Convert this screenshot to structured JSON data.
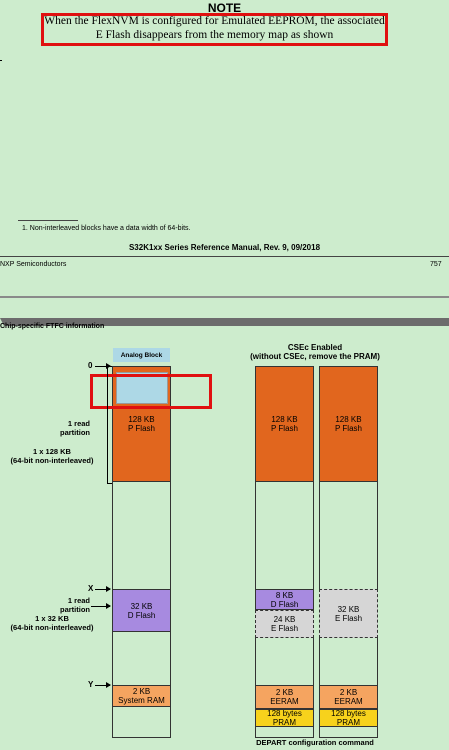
{
  "note": {
    "title": "NOTE",
    "text": "When the FlexNVM is configured for Emulated EEPROM, the associated E Flash disappears from the memory map as shown"
  },
  "footnote": "1.   Non-interleaved blocks have a data width of 64-bits.",
  "footer": {
    "manual": "S32K1xx Series Reference Manual, Rev. 9, 09/2018",
    "company": "NXP Semiconductors",
    "page_number": "757"
  },
  "section_title": "Chip-specific FTFC information",
  "diagram": {
    "analog_block": "Analog Block",
    "left_labels": {
      "zero": "0",
      "x": "X",
      "y": "Y",
      "read_partition_1": "1 read\npartition",
      "block_1x128": "1 x 128 KB\n(64-bit non-interleaved)",
      "read_partition_2": "1 read\npartition",
      "block_1x32": "1 x 32 KB\n(64-bit non-interleaved)"
    },
    "left_column": {
      "pflash": "128 KB\nP Flash",
      "dflash": "32 KB\nD Flash",
      "sram": "2 KB\nSystem RAM"
    },
    "csec_title": "CSEc Enabled\n(without CSEc, remove the PRAM)",
    "col2": {
      "pflash": "128 KB\nP Flash",
      "dflash": "8 KB\nD Flash",
      "eflash": "24 KB\nE Flash",
      "eeram": "2 KB\nEERAM",
      "pram": "128 bytes\nPRAM"
    },
    "col3": {
      "pflash": "128 KB\nP Flash",
      "eflash": "32 KB\nE Flash",
      "eeram": "2 KB\nEERAM",
      "pram": "128 bytes\nPRAM"
    },
    "bottom_caption": "DEPART configuration command"
  },
  "colors": {
    "page_background": "#cdeccd",
    "highlight": "#e01010",
    "pflash": "#e1661e",
    "dflash": "#a78ae0",
    "analog": "#add8e6"
  }
}
